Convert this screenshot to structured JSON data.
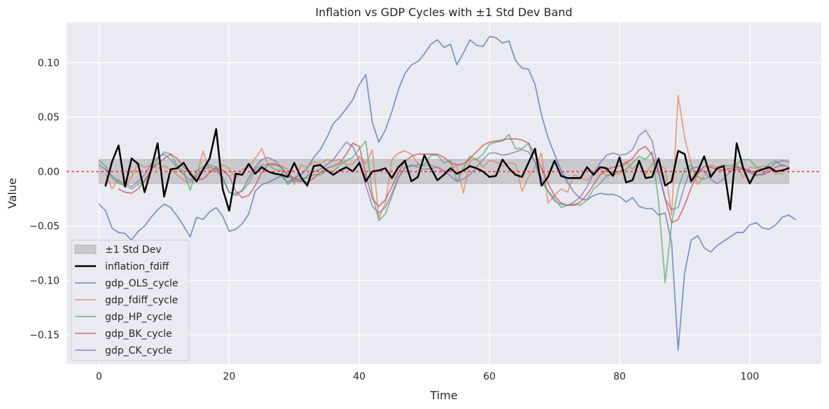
{
  "chart_data": {
    "type": "line",
    "title": "Inflation vs GDP Cycles with ±1 Std Dev Band",
    "xlabel": "Time",
    "ylabel": "Value",
    "xlim": [
      -5,
      111
    ],
    "ylim": [
      -0.177,
      0.137
    ],
    "xticks": [
      0,
      20,
      40,
      60,
      80,
      100
    ],
    "yticks": [
      -0.15,
      -0.1,
      -0.05,
      0.0,
      0.05,
      0.1
    ],
    "xtick_labels": [
      "0",
      "20",
      "40",
      "60",
      "80",
      "100"
    ],
    "ytick_labels": [
      "−0.15",
      "−0.10",
      "−0.05",
      "0.00",
      "0.05",
      "0.10"
    ],
    "grid": true,
    "background": "#eaeaf2",
    "legend_position": "lower left",
    "band": {
      "name": "±1 Std Dev",
      "lower": -0.011,
      "upper": 0.011,
      "x_start": 0,
      "x_end": 106,
      "color": "#7f7f7f"
    },
    "zero_line": {
      "y": 0,
      "color": "#ff0000",
      "style": "dashed"
    },
    "series": [
      {
        "name": "gdp_OLS_cycle",
        "color": "#4c72b0",
        "width": 1.8,
        "opacity": 0.7,
        "x_start": 0,
        "values": [
          -0.03,
          -0.036,
          -0.052,
          -0.056,
          -0.057,
          -0.063,
          -0.055,
          -0.05,
          -0.042,
          -0.035,
          -0.03,
          -0.033,
          -0.041,
          -0.05,
          -0.06,
          -0.042,
          -0.044,
          -0.037,
          -0.033,
          -0.041,
          -0.055,
          -0.053,
          -0.048,
          -0.039,
          -0.018,
          -0.012,
          -0.01,
          -0.007,
          -0.004,
          -0.01,
          -0.006,
          -0.003,
          0.003,
          0.013,
          0.02,
          0.031,
          0.044,
          0.05,
          0.058,
          0.066,
          0.08,
          0.089,
          0.045,
          0.027,
          0.038,
          0.055,
          0.075,
          0.09,
          0.098,
          0.101,
          0.108,
          0.117,
          0.121,
          0.114,
          0.117,
          0.098,
          0.109,
          0.121,
          0.116,
          0.115,
          0.124,
          0.123,
          0.118,
          0.12,
          0.102,
          0.095,
          0.094,
          0.08,
          0.052,
          0.031,
          0.016,
          0.001,
          -0.01,
          -0.019,
          -0.025,
          -0.026,
          -0.022,
          -0.02,
          -0.021,
          -0.021,
          -0.023,
          -0.028,
          -0.024,
          -0.032,
          -0.034,
          -0.034,
          -0.04,
          -0.038,
          -0.066,
          -0.164,
          -0.093,
          -0.063,
          -0.059,
          -0.07,
          -0.074,
          -0.068,
          -0.064,
          -0.06,
          -0.056,
          -0.056,
          -0.049,
          -0.047,
          -0.052,
          -0.053,
          -0.049,
          -0.042,
          -0.04,
          -0.044
        ]
      },
      {
        "name": "gdp_fdiff_cycle",
        "color": "#dd8452",
        "width": 1.8,
        "opacity": 0.7,
        "x_start": 1,
        "values": [
          -0.002,
          -0.016,
          -0.007,
          -0.014,
          -0.005,
          0.008,
          0.004,
          0.006,
          0.003,
          0.005,
          0.002,
          -0.003,
          -0.008,
          -0.01,
          -0.005,
          0.019,
          0.0,
          0.004,
          0.006,
          0.003,
          -0.006,
          0.002,
          0.004,
          0.012,
          0.021,
          0.006,
          0.006,
          0.005,
          0.002,
          -0.012,
          0.006,
          0.004,
          0.009,
          0.007,
          0.011,
          0.01,
          0.011,
          0.006,
          0.007,
          0.014,
          0.007,
          0.02,
          -0.043,
          -0.029,
          0.011,
          0.017,
          0.019,
          0.016,
          0.007,
          0.005,
          0.006,
          0.004,
          -0.001,
          0.003,
          0.005,
          -0.02,
          0.01,
          0.012,
          0.004,
          0.01,
          0.009,
          0.005,
          0.008,
          0.007,
          -0.018,
          -0.005,
          0.004,
          0.017,
          -0.029,
          -0.022,
          -0.016,
          -0.019,
          -0.003,
          -0.006,
          -0.008,
          -0.002,
          0.003,
          -0.004,
          -0.003,
          -0.002,
          0.009,
          0.002,
          0.009,
          -0.003,
          0.007,
          0.006,
          0.003,
          -0.04,
          0.07,
          0.031,
          0.007,
          -0.012,
          -0.004,
          0.006,
          0.004,
          0.006,
          0.0,
          0.006,
          -0.006,
          0.004,
          0.003,
          0.005,
          0.004,
          -0.002,
          -0.002
        ]
      },
      {
        "name": "gdp_HP_cycle",
        "color": "#55a868",
        "width": 1.8,
        "opacity": 0.7,
        "x_start": 0,
        "values": [
          0.01,
          0.005,
          -0.006,
          -0.011,
          -0.013,
          -0.016,
          -0.012,
          -0.008,
          0.001,
          0.011,
          0.018,
          0.016,
          0.006,
          0.0,
          -0.017,
          0.001,
          0.004,
          0.006,
          0.004,
          -0.005,
          -0.019,
          -0.02,
          -0.018,
          -0.011,
          0.002,
          0.006,
          0.006,
          0.002,
          0.001,
          -0.012,
          -0.007,
          -0.007,
          -0.006,
          -0.003,
          -0.003,
          0.001,
          0.0,
          0.006,
          0.01,
          0.013,
          0.021,
          0.028,
          -0.021,
          -0.045,
          -0.039,
          -0.023,
          -0.006,
          0.003,
          0.005,
          0.006,
          0.006,
          0.015,
          0.015,
          0.008,
          0.01,
          -0.009,
          0.003,
          0.014,
          0.011,
          0.016,
          0.025,
          0.027,
          0.028,
          0.034,
          0.021,
          0.021,
          0.026,
          0.008,
          -0.01,
          -0.018,
          -0.025,
          -0.033,
          -0.031,
          -0.03,
          -0.031,
          -0.026,
          -0.016,
          -0.011,
          -0.004,
          -0.001,
          0.0,
          0.002,
          0.008,
          0.014,
          0.011,
          0.018,
          -0.028,
          -0.102,
          -0.048,
          -0.016,
          0.002,
          0.006,
          -0.005,
          -0.007,
          -0.003,
          0.003,
          0.006,
          0.005,
          0.007,
          0.011,
          0.011,
          0.004,
          0.002,
          0.007,
          0.01,
          0.005
        ]
      },
      {
        "name": "gdp_BK_cycle",
        "color": "#c44e52",
        "width": 1.8,
        "opacity": 0.7,
        "x_start": 3,
        "values": [
          -0.016,
          -0.019,
          -0.02,
          -0.016,
          -0.009,
          0.002,
          0.007,
          0.012,
          0.016,
          0.012,
          0.004,
          -0.001,
          -0.007,
          -0.007,
          -0.001,
          0.003,
          0.001,
          -0.004,
          -0.018,
          -0.024,
          -0.022,
          -0.013,
          -0.001,
          0.007,
          0.007,
          0.004,
          -0.003,
          -0.006,
          -0.009,
          -0.01,
          -0.006,
          -0.001,
          0.003,
          0.005,
          0.008,
          0.016,
          0.026,
          0.023,
          -0.003,
          -0.025,
          -0.032,
          -0.026,
          -0.014,
          -0.001,
          0.009,
          0.014,
          0.016,
          0.016,
          0.016,
          0.016,
          0.013,
          0.008,
          0.006,
          0.007,
          0.012,
          0.018,
          0.024,
          0.027,
          0.028,
          0.029,
          0.03,
          0.03,
          0.029,
          0.026,
          0.016,
          0.003,
          -0.011,
          -0.022,
          -0.029,
          -0.031,
          -0.031,
          -0.028,
          -0.021,
          -0.012,
          -0.003,
          0.002,
          0.004,
          0.005,
          0.008,
          0.012,
          0.02,
          0.023,
          0.015,
          -0.001,
          -0.025,
          -0.047,
          -0.044,
          -0.031,
          -0.015,
          -0.002,
          0.005,
          0.004,
          0.002,
          0.001,
          0.003,
          0.004,
          0.003,
          0.001,
          -0.003,
          -0.003,
          0.0,
          0.004,
          0.006,
          0.004
        ]
      },
      {
        "name": "gdp_CK_cycle",
        "color": "#8172b3",
        "width": 1.8,
        "opacity": 0.7,
        "x_start": 0,
        "values": [
          0.006,
          0.002,
          -0.004,
          -0.009,
          -0.011,
          -0.014,
          -0.009,
          -0.003,
          0.007,
          0.013,
          0.016,
          0.011,
          0.004,
          -0.003,
          -0.008,
          -0.004,
          0.002,
          0.004,
          0.002,
          -0.007,
          -0.019,
          -0.022,
          -0.017,
          -0.006,
          0.004,
          0.011,
          0.013,
          0.01,
          0.004,
          -0.004,
          -0.009,
          -0.009,
          -0.004,
          0.0,
          0.002,
          0.006,
          0.011,
          0.019,
          0.027,
          0.023,
          0.01,
          -0.013,
          -0.032,
          -0.038,
          -0.033,
          -0.02,
          -0.006,
          0.004,
          0.006,
          0.004,
          0.002,
          0.003,
          0.004,
          0.001,
          -0.004,
          -0.009,
          -0.007,
          -0.003,
          0.004,
          0.011,
          0.017,
          0.017,
          0.015,
          0.016,
          0.018,
          0.02,
          0.018,
          0.009,
          -0.006,
          -0.018,
          -0.027,
          -0.03,
          -0.031,
          -0.028,
          -0.023,
          -0.014,
          -0.002,
          0.008,
          0.015,
          0.017,
          0.015,
          0.016,
          0.02,
          0.033,
          0.038,
          0.028,
          0.0,
          -0.025,
          -0.035,
          -0.033,
          -0.013,
          0.003,
          0.004,
          0.0,
          -0.007,
          -0.011,
          -0.007,
          0.0,
          0.002,
          0.002,
          -0.001,
          -0.004,
          -0.002,
          0.003,
          0.008,
          0.01,
          0.009
        ]
      },
      {
        "name": "inflation_fdiff",
        "color": "#000000",
        "width": 2.5,
        "opacity": 1.0,
        "x_start": 1,
        "values": [
          -0.013,
          0.009,
          0.024,
          -0.014,
          0.012,
          0.007,
          -0.019,
          0.002,
          0.026,
          -0.023,
          0.002,
          0.003,
          0.008,
          -0.002,
          -0.009,
          0.002,
          0.012,
          0.039,
          -0.016,
          -0.036,
          -0.002,
          -0.003,
          0.007,
          -0.002,
          0.004,
          0.0,
          -0.002,
          -0.003,
          -0.005,
          0.008,
          -0.005,
          -0.013,
          0.005,
          0.006,
          0.001,
          -0.003,
          0.001,
          0.004,
          0.0,
          0.008,
          -0.009,
          0.0,
          0.001,
          0.003,
          -0.006,
          0.004,
          0.01,
          -0.009,
          -0.005,
          0.015,
          0.003,
          -0.008,
          -0.003,
          0.003,
          -0.002,
          0.001,
          0.005,
          0.003,
          0.0,
          -0.005,
          -0.004,
          0.011,
          0.003,
          -0.003,
          -0.005,
          0.008,
          0.021,
          -0.013,
          -0.005,
          0.01,
          -0.004,
          -0.006,
          -0.006,
          -0.006,
          0.004,
          -0.003,
          0.004,
          0.003,
          -0.004,
          0.013,
          -0.01,
          -0.008,
          0.01,
          -0.006,
          -0.005,
          0.012,
          -0.013,
          -0.009,
          0.019,
          0.016,
          -0.009,
          0.0,
          0.014,
          -0.005,
          0.003,
          0.005,
          -0.035,
          0.026,
          0.003,
          -0.011,
          0.0,
          0.002,
          0.004,
          0.0,
          0.001,
          0.003
        ]
      }
    ],
    "legend": [
      {
        "key": "band",
        "label": "±1 Std Dev"
      },
      {
        "key": "inflation_fdiff",
        "label": "inflation_fdiff"
      },
      {
        "key": "gdp_OLS_cycle",
        "label": "gdp_OLS_cycle"
      },
      {
        "key": "gdp_fdiff_cycle",
        "label": "gdp_fdiff_cycle"
      },
      {
        "key": "gdp_HP_cycle",
        "label": "gdp_HP_cycle"
      },
      {
        "key": "gdp_BK_cycle",
        "label": "gdp_BK_cycle"
      },
      {
        "key": "gdp_CK_cycle",
        "label": "gdp_CK_cycle"
      }
    ]
  }
}
